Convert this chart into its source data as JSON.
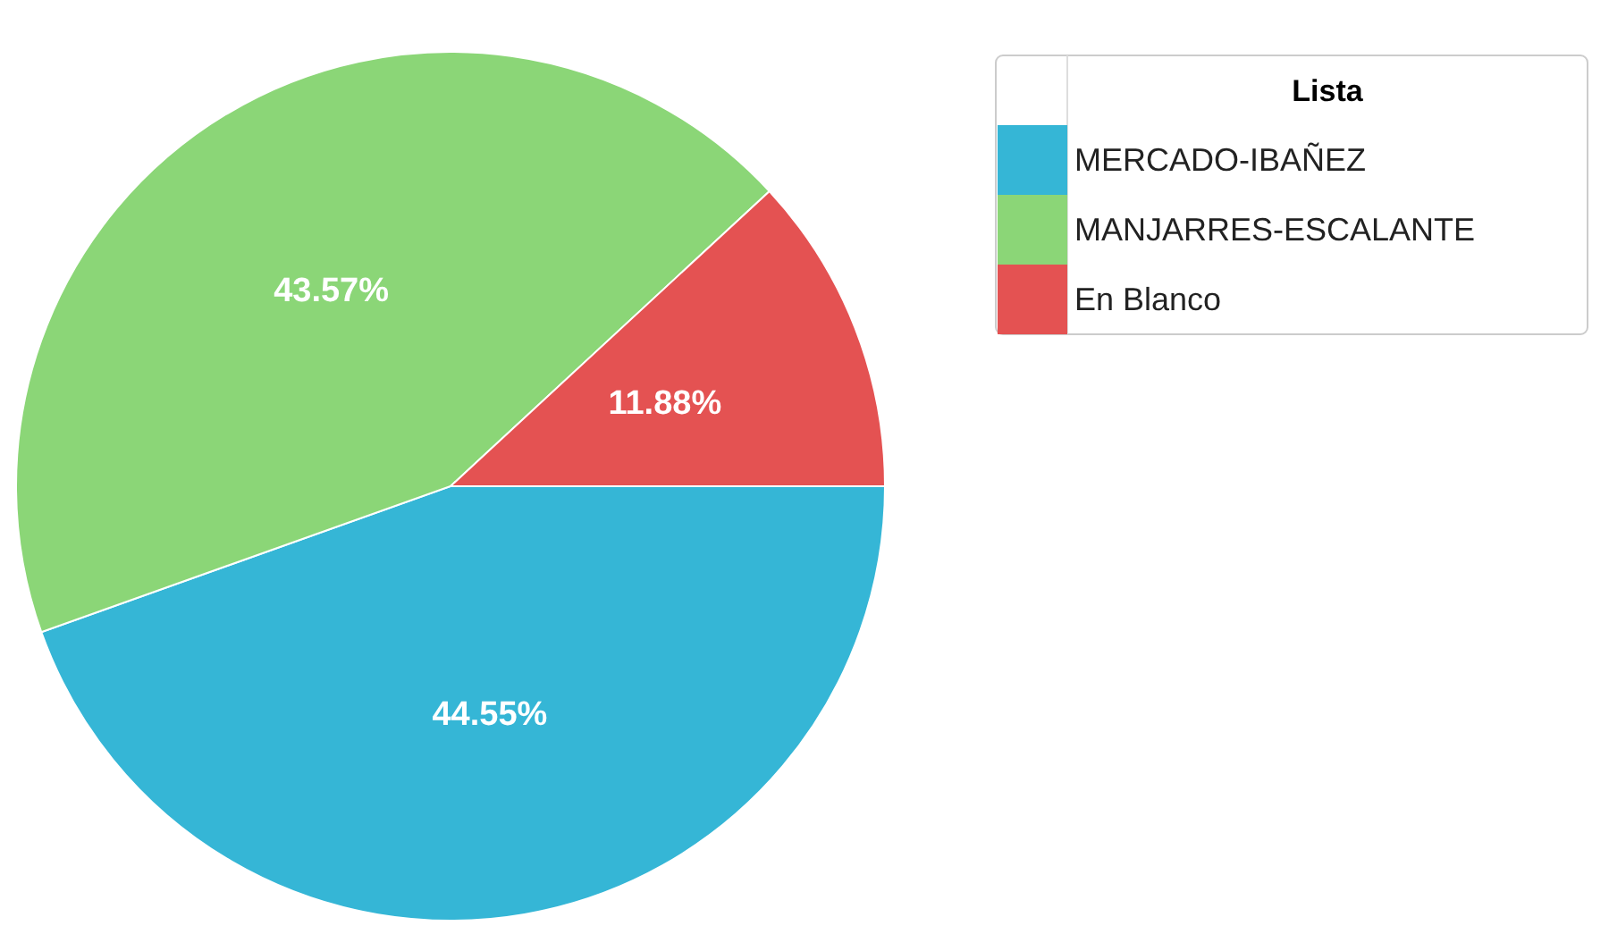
{
  "chart_data": {
    "type": "pie",
    "legend_title": "Lista",
    "categories": [
      "MERCADO-IBAÑEZ",
      "MANJARRES-ESCALANTE",
      "En Blanco"
    ],
    "values": [
      44.55,
      43.57,
      11.88
    ],
    "colors": [
      "#35b6d6",
      "#8bd677",
      "#e45252"
    ],
    "value_labels": [
      "44.55%",
      "43.57%",
      "11.88%"
    ],
    "legend": "top right"
  }
}
